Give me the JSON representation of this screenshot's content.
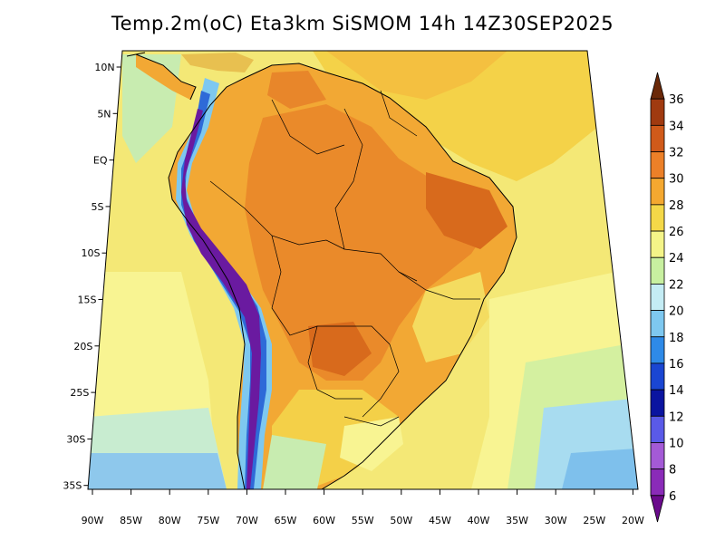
{
  "title": "Temp.2m(oC) Eta3km SiSMOM 14h 14Z30SEP2025",
  "map": {
    "variable": "2 m air temperature",
    "units": "°C",
    "region": "South America",
    "lat_labels": [
      "10N",
      "5N",
      "EQ",
      "5S",
      "10S",
      "15S",
      "20S",
      "25S",
      "30S",
      "35S"
    ],
    "lon_labels": [
      "90W",
      "85W",
      "80W",
      "75W",
      "70W",
      "65W",
      "60W",
      "55W",
      "50W",
      "45W",
      "40W",
      "35W",
      "30W",
      "25W",
      "20W"
    ]
  },
  "colorbar": {
    "levels": [
      "6",
      "8",
      "10",
      "12",
      "14",
      "16",
      "18",
      "20",
      "22",
      "24",
      "26",
      "28",
      "30",
      "32",
      "34",
      "36"
    ],
    "colors": [
      "#6a0a8c",
      "#8a2bb8",
      "#a45ad6",
      "#5a5ae8",
      "#0a14a0",
      "#1a46d2",
      "#2e8ae8",
      "#7ec8f0",
      "#c4ecf4",
      "#c8f0a0",
      "#f4f488",
      "#f4d848",
      "#f4a830",
      "#ec8028",
      "#d05a1a",
      "#a03a10",
      "#6a2808"
    ]
  }
}
